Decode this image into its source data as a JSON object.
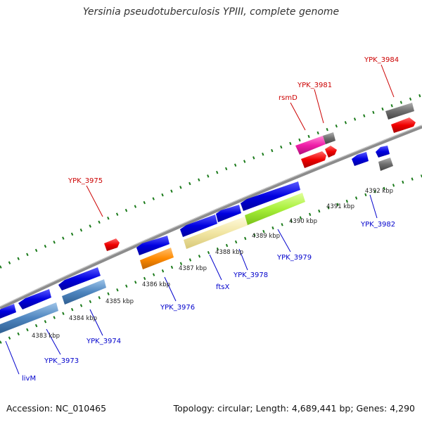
{
  "title": "Yersinia pseudotuberculosis YPIII, complete genome",
  "accession_text": "Accession: NC_010465",
  "summary_text": "Topology: circular; Length: 4,689,441 bp; Genes: 4,290",
  "colors": {
    "forward_label": "#cc0000",
    "reverse_label": "#0000cc",
    "backbone": "#8c8c8c",
    "ticks": "#1a7a1a"
  },
  "kbp_ticks": [
    "4383 kbp",
    "4384 kbp",
    "4385 kbp",
    "4386 kbp",
    "4387 kbp",
    "4388 kbp",
    "4389 kbp",
    "4390 kbp",
    "4391 kbp",
    "4392 kbp"
  ],
  "gene_labels": {
    "forward": [
      "YPK_3975",
      "rsmD",
      "YPK_3981",
      "YPK_3984"
    ],
    "reverse": [
      "livM",
      "YPK_3973",
      "YPK_3974",
      "YPK_3976",
      "ftsX",
      "YPK_3978",
      "YPK_3979",
      "YPK_3982"
    ]
  }
}
